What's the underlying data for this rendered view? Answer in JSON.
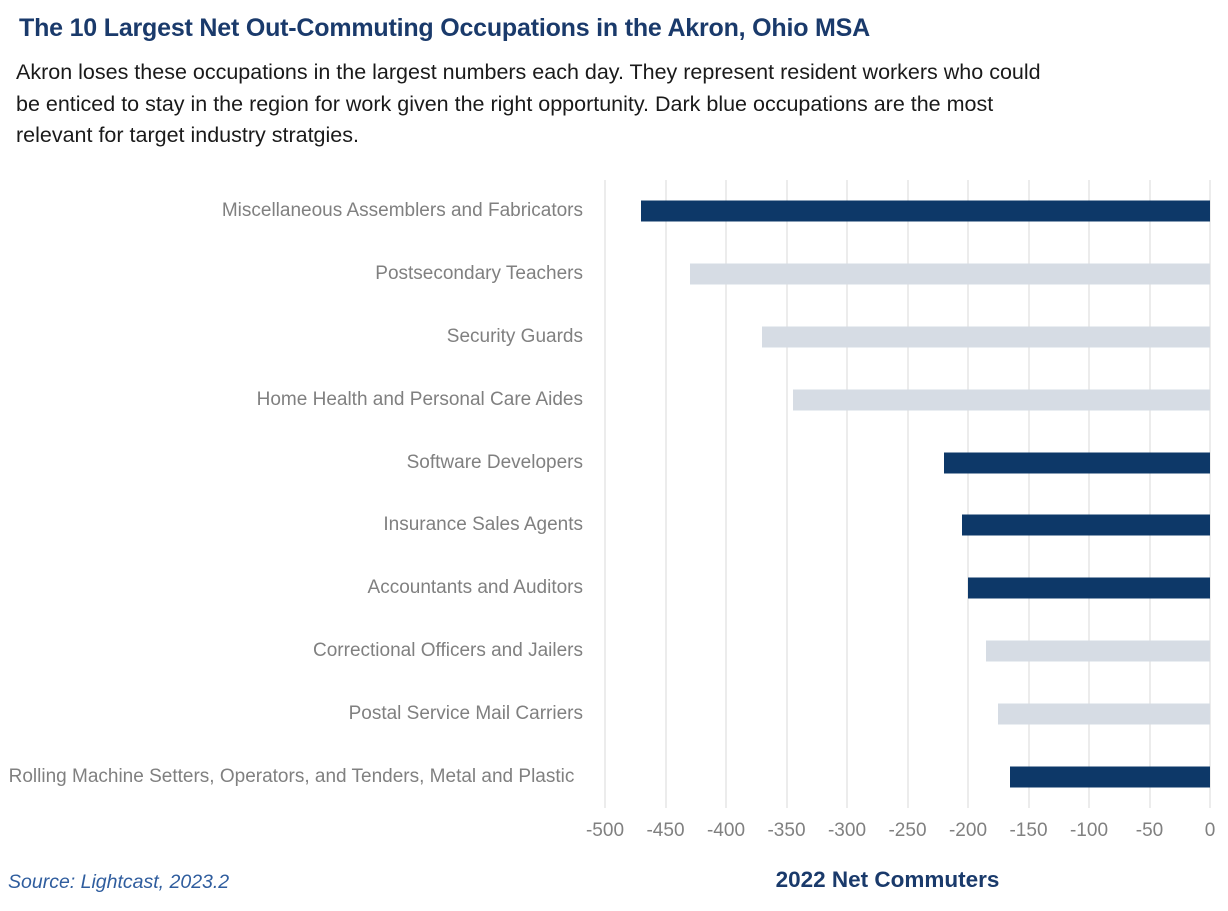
{
  "header": {
    "title": "The 10 Largest Net Out-Commuting Occupations in the Akron, Ohio MSA",
    "subtitle": "Akron loses these occupations in the largest numbers each day. They represent resident workers who could\nbe enticed to stay in the region for work given the right opportunity. Dark blue occupations are the most\nrelevant for target industry stratgies."
  },
  "chart_data": {
    "type": "bar",
    "orientation": "horizontal",
    "title": "The 10 Largest Net Out-Commuting Occupations in the Akron, Ohio MSA",
    "categories": [
      "Miscellaneous Assemblers and Fabricators",
      "Postsecondary Teachers",
      "Security Guards",
      "Home Health and Personal Care Aides",
      "Software Developers",
      "Insurance Sales Agents",
      "Accountants and Auditors",
      "Correctional Officers and Jailers",
      "Postal Service Mail Carriers",
      "Rolling Machine Setters, Operators, and Tenders, Metal and Plastic"
    ],
    "values": [
      -470,
      -430,
      -370,
      -345,
      -220,
      -205,
      -200,
      -185,
      -175,
      -165
    ],
    "highlighted": [
      true,
      false,
      false,
      false,
      true,
      true,
      true,
      false,
      false,
      true
    ],
    "xlabel": "2022 Net Commuters",
    "ylabel": "",
    "xlim": [
      -500,
      0
    ],
    "xticks": [
      -500,
      -450,
      -400,
      -350,
      -300,
      -250,
      -200,
      -150,
      -100,
      -50,
      0
    ],
    "grid": true,
    "legend_position": "none"
  },
  "footer": {
    "source": "Source: Lightcast, 2023.2"
  },
  "colors": {
    "title": "#1A3A6B",
    "bar_dark": "#0D3868",
    "bar_light": "#D6DCE4",
    "gridline": "#D9D9D9",
    "label_gray": "#808080",
    "source_blue": "#2F5D9E"
  }
}
